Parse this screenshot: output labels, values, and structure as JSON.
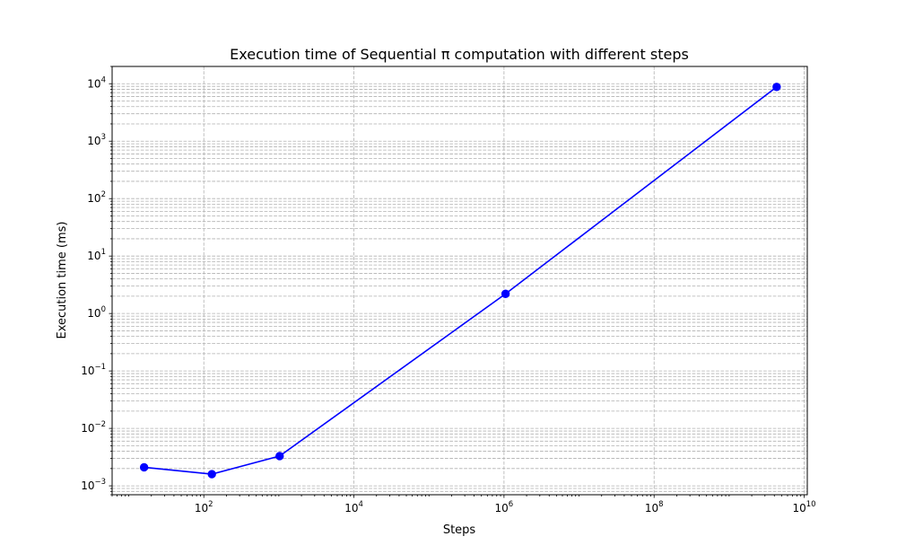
{
  "chart_data": {
    "type": "line",
    "title": "Execution time of Sequential π computation with different steps",
    "xlabel": "Steps",
    "ylabel": "Execution time (ms)",
    "xscale": "log",
    "yscale": "log",
    "xlim": [
      6,
      11000000000
    ],
    "ylim": [
      0.0007,
      20000
    ],
    "grid": true,
    "grid_style": "dashed",
    "x_ticks": [
      {
        "value": 100,
        "base": "10",
        "exp": "2"
      },
      {
        "value": 10000,
        "base": "10",
        "exp": "4"
      },
      {
        "value": 1000000,
        "base": "10",
        "exp": "6"
      },
      {
        "value": 100000000,
        "base": "10",
        "exp": "8"
      },
      {
        "value": 10000000000,
        "base": "10",
        "exp": "10"
      }
    ],
    "y_ticks": [
      {
        "value": 0.001,
        "base": "10",
        "exp": "−3"
      },
      {
        "value": 0.01,
        "base": "10",
        "exp": "−2"
      },
      {
        "value": 0.1,
        "base": "10",
        "exp": "−1"
      },
      {
        "value": 1,
        "base": "10",
        "exp": "0"
      },
      {
        "value": 10,
        "base": "10",
        "exp": "1"
      },
      {
        "value": 100,
        "base": "10",
        "exp": "2"
      },
      {
        "value": 1000,
        "base": "10",
        "exp": "3"
      },
      {
        "value": 10000,
        "base": "10",
        "exp": "4"
      }
    ],
    "series": [
      {
        "color": "#0000ff",
        "marker": "circle",
        "x": [
          16,
          128,
          1024,
          1048576,
          4294967296
        ],
        "y": [
          0.0021,
          0.0016,
          0.0033,
          2.2,
          8800
        ]
      }
    ]
  }
}
